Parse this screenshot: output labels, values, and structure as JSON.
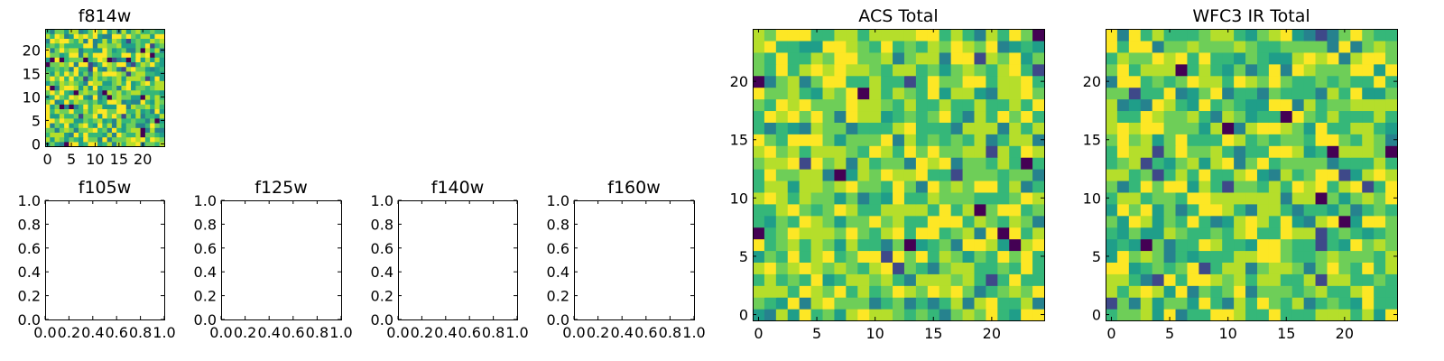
{
  "chart_data": [
    {
      "type": "heatmap",
      "title": "f814w",
      "grid_size": 25,
      "xticks": [
        "0",
        "5",
        "10",
        "15",
        "20"
      ],
      "yticks": [
        "0",
        "5",
        "10",
        "15",
        "20"
      ],
      "xlim": [
        -0.5,
        24.5
      ],
      "ylim": [
        -0.5,
        24.5
      ],
      "colormap": "viridis",
      "seed": 814,
      "low_fraction": 0.03,
      "mid_fraction": 0.22,
      "values": "25x25 pseudo-random noise (generated from seed)"
    },
    {
      "type": "empty",
      "title": "f105w",
      "xticks": [
        "0.0",
        "0.2",
        "0.4",
        "0.6",
        "0.8",
        "1.0"
      ],
      "yticks": [
        "0.0",
        "0.2",
        "0.4",
        "0.6",
        "0.8",
        "1.0"
      ],
      "xlim": [
        0,
        1
      ],
      "ylim": [
        0,
        1
      ]
    },
    {
      "type": "empty",
      "title": "f125w",
      "xticks": [
        "0.0",
        "0.2",
        "0.4",
        "0.6",
        "0.8",
        "1.0"
      ],
      "yticks": [
        "0.0",
        "0.2",
        "0.4",
        "0.6",
        "0.8",
        "1.0"
      ],
      "xlim": [
        0,
        1
      ],
      "ylim": [
        0,
        1
      ]
    },
    {
      "type": "empty",
      "title": "f140w",
      "xticks": [
        "0.0",
        "0.2",
        "0.4",
        "0.6",
        "0.8",
        "1.0"
      ],
      "yticks": [
        "0.0",
        "0.2",
        "0.4",
        "0.6",
        "0.8",
        "1.0"
      ],
      "xlim": [
        0,
        1
      ],
      "ylim": [
        0,
        1
      ]
    },
    {
      "type": "empty",
      "title": "f160w",
      "xticks": [
        "0.0",
        "0.2",
        "0.4",
        "0.6",
        "0.8",
        "1.0"
      ],
      "yticks": [
        "0.0",
        "0.2",
        "0.4",
        "0.6",
        "0.8",
        "1.0"
      ],
      "xlim": [
        0,
        1
      ],
      "ylim": [
        0,
        1
      ]
    },
    {
      "type": "heatmap",
      "title": "ACS Total",
      "grid_size": 25,
      "xticks": [
        "0",
        "5",
        "10",
        "15",
        "20"
      ],
      "yticks": [
        "0",
        "5",
        "10",
        "15",
        "20"
      ],
      "xlim": [
        -0.5,
        24.5
      ],
      "ylim": [
        -0.5,
        24.5
      ],
      "colormap": "viridis",
      "seed": 1123,
      "low_fraction": 0.02,
      "mid_fraction": 0.12,
      "values": "25x25 pseudo-random noise (generated from seed)"
    },
    {
      "type": "heatmap",
      "title": "WFC3 IR Total",
      "grid_size": 25,
      "xticks": [
        "0",
        "5",
        "10",
        "15",
        "20"
      ],
      "yticks": [
        "0",
        "5",
        "10",
        "15",
        "20"
      ],
      "xlim": [
        -0.5,
        24.5
      ],
      "ylim": [
        -0.5,
        24.5
      ],
      "colormap": "viridis",
      "seed": 3160,
      "low_fraction": 0.02,
      "mid_fraction": 0.14,
      "values": "25x25 pseudo-random noise (generated from seed)"
    }
  ]
}
